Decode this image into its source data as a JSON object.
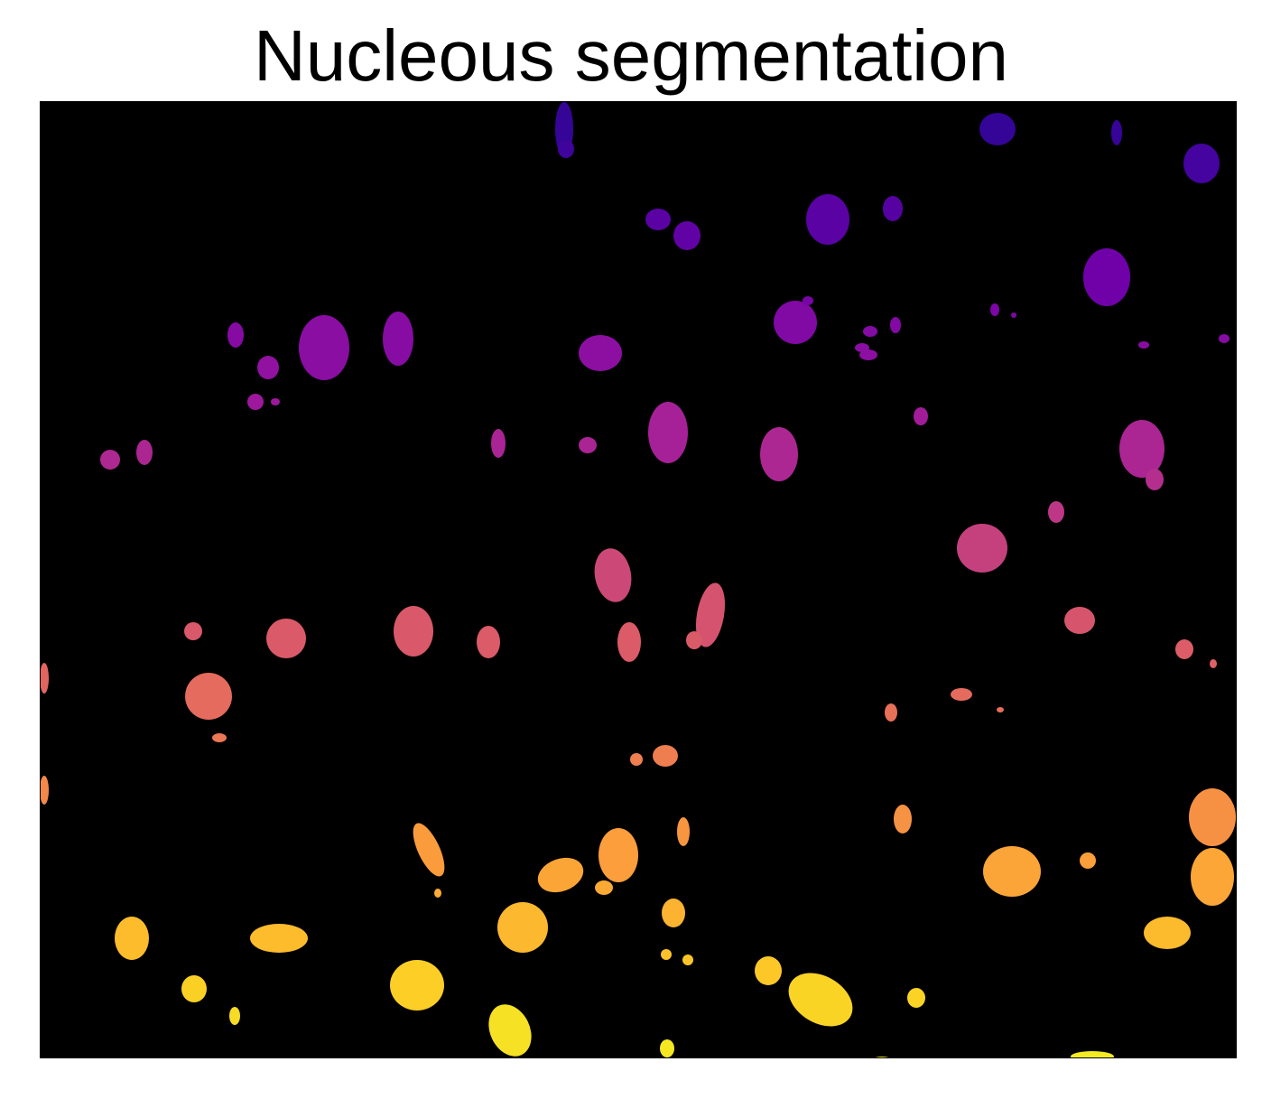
{
  "figure": {
    "title": "Nucleous segmentation"
  },
  "image": {
    "background": "#000000",
    "colormap": "plasma",
    "colormap_stops": [
      "#0d0887",
      "#46039f",
      "#7201a8",
      "#9c179e",
      "#bd3786",
      "#d8576b",
      "#ed7953",
      "#fb9f3a",
      "#fdca26",
      "#f0f921"
    ]
  }
}
